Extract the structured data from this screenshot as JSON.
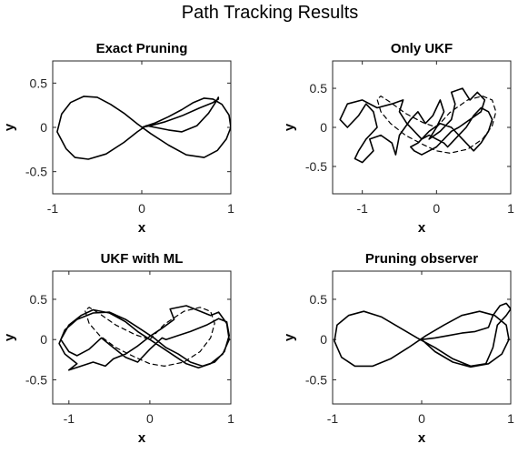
{
  "figure": {
    "title": "Path Tracking Results"
  },
  "chart_data": [
    {
      "type": "line",
      "title": "Exact Pruning",
      "xlabel": "x",
      "ylabel": "y",
      "xlim": [
        -1,
        1
      ],
      "ylim": [
        -0.75,
        0.75
      ],
      "xticks": [
        {
          "v": -1,
          "label": "-1"
        },
        {
          "v": 0,
          "label": "0"
        },
        {
          "v": 1,
          "label": "1"
        }
      ],
      "yticks": [
        {
          "v": 0.5,
          "label": "0.5"
        },
        {
          "v": 0,
          "label": "0"
        },
        {
          "v": -0.5,
          "label": "-0.5"
        }
      ],
      "grid": false,
      "series": [
        {
          "style": "solid",
          "x": [
            0.0,
            0.1,
            0.25,
            0.45,
            0.65,
            0.8,
            0.86,
            0.86,
            0.84,
            0.75,
            0.62,
            0.45,
            0.3,
            0.15,
            0.05,
            -0.05,
            -0.2,
            -0.4,
            -0.6,
            -0.75,
            -0.85,
            -0.95,
            -0.9,
            -0.8,
            -0.65,
            -0.5,
            -0.35,
            -0.2,
            -0.05,
            0.1,
            0.3,
            0.5,
            0.7,
            0.85,
            0.95,
            1.0,
            0.98,
            0.9,
            0.8,
            0.7,
            0.58,
            0.45,
            0.3,
            0.15,
            0.0
          ],
          "y": [
            0.0,
            0.02,
            0.06,
            0.13,
            0.22,
            0.28,
            0.32,
            0.34,
            0.3,
            0.16,
            0.02,
            -0.05,
            -0.03,
            0.0,
            0.02,
            -0.05,
            -0.17,
            -0.3,
            -0.36,
            -0.34,
            -0.24,
            -0.05,
            0.15,
            0.28,
            0.35,
            0.34,
            0.26,
            0.16,
            0.04,
            -0.07,
            -0.2,
            -0.31,
            -0.34,
            -0.26,
            -0.13,
            0.0,
            0.14,
            0.26,
            0.32,
            0.33,
            0.28,
            0.2,
            0.12,
            0.05,
            0.0
          ]
        }
      ]
    },
    {
      "type": "line",
      "title": "Only UKF",
      "xlabel": "x",
      "ylabel": "y",
      "xlim": [
        -1.4,
        1
      ],
      "ylim": [
        -0.85,
        0.85
      ],
      "xticks": [
        {
          "v": -1,
          "label": "-1"
        },
        {
          "v": 0,
          "label": "0"
        },
        {
          "v": 1,
          "label": "1"
        }
      ],
      "yticks": [
        {
          "v": 0.5,
          "label": "0.5"
        },
        {
          "v": 0,
          "label": "0"
        },
        {
          "v": -0.5,
          "label": "-0.5"
        }
      ],
      "grid": false,
      "series": [
        {
          "style": "solid",
          "x": [
            -0.2,
            -0.25,
            -0.4,
            -0.5,
            -0.45,
            -0.6,
            -0.8,
            -1.0,
            -1.2,
            -1.3,
            -1.2,
            -1.05,
            -0.95,
            -0.85,
            -0.8,
            -0.95,
            -1.05,
            -1.1,
            -1.0,
            -0.85,
            -0.9,
            -0.75,
            -0.6,
            -0.55,
            -0.5,
            -0.35,
            -0.25,
            -0.15,
            -0.05,
            0.05,
            0.1,
            0.0,
            -0.1,
            0.05,
            0.2,
            0.25,
            0.2,
            0.35,
            0.45,
            0.55,
            0.65,
            0.6,
            0.45,
            0.3,
            0.2,
            0.1,
            0.0,
            -0.1,
            -0.2,
            -0.3,
            -0.35,
            -0.25,
            -0.1,
            0.05,
            0.2,
            0.35,
            0.5,
            0.6,
            0.7,
            0.75,
            0.7,
            0.6,
            0.5,
            0.4,
            0.3,
            0.2,
            0.15,
            0.1,
            0.0,
            -0.1,
            -0.2
          ],
          "y": [
            -0.15,
            -0.1,
            0.05,
            0.2,
            0.35,
            0.3,
            0.25,
            0.35,
            0.3,
            0.1,
            0.0,
            0.15,
            0.3,
            0.2,
            0.0,
            -0.15,
            -0.3,
            -0.4,
            -0.45,
            -0.3,
            -0.15,
            -0.1,
            -0.2,
            -0.35,
            -0.1,
            0.1,
            0.2,
            0.05,
            0.15,
            0.35,
            0.2,
            0.0,
            -0.15,
            -0.05,
            0.1,
            0.3,
            0.45,
            0.5,
            0.35,
            0.45,
            0.35,
            0.2,
            0.1,
            0.0,
            -0.05,
            -0.15,
            -0.25,
            -0.3,
            -0.35,
            -0.3,
            -0.25,
            -0.2,
            -0.05,
            0.05,
            0.0,
            -0.15,
            -0.3,
            -0.2,
            -0.05,
            0.1,
            0.2,
            0.25,
            0.15,
            0.0,
            -0.1,
            -0.2,
            -0.25,
            -0.2,
            -0.15,
            -0.1,
            -0.15
          ]
        },
        {
          "style": "dashed",
          "x": [
            0.0,
            0.18,
            0.42,
            0.62,
            0.75,
            0.8,
            0.75,
            0.62,
            0.42,
            0.18,
            0.0,
            -0.18,
            -0.42,
            -0.62,
            -0.75,
            -0.8,
            -0.75,
            -0.62,
            -0.42,
            -0.18,
            0.0
          ],
          "y": [
            0.0,
            0.19,
            0.35,
            0.4,
            0.35,
            0.2,
            0.02,
            -0.15,
            -0.28,
            -0.33,
            -0.3,
            -0.22,
            -0.1,
            0.05,
            0.2,
            0.36,
            0.4,
            0.32,
            0.18,
            0.06,
            0.0
          ]
        }
      ]
    },
    {
      "type": "line",
      "title": "UKF with ML",
      "xlabel": "x",
      "ylabel": "y",
      "xlim": [
        -1.2,
        1
      ],
      "ylim": [
        -0.8,
        0.85
      ],
      "xticks": [
        {
          "v": -1,
          "label": "-1"
        },
        {
          "v": 0,
          "label": "0"
        },
        {
          "v": 1,
          "label": "1"
        }
      ],
      "yticks": [
        {
          "v": 0.5,
          "label": "0.5"
        },
        {
          "v": 0,
          "label": "0"
        },
        {
          "v": -0.5,
          "label": "-0.5"
        }
      ],
      "grid": false,
      "series": [
        {
          "style": "solid",
          "x": [
            0.2,
            0.35,
            0.5,
            0.7,
            0.85,
            0.95,
            0.98,
            0.92,
            0.8,
            0.65,
            0.5,
            0.35,
            0.2,
            0.05,
            -0.1,
            -0.3,
            -0.5,
            -0.7,
            -0.9,
            -1.05,
            -1.12,
            -1.05,
            -0.9,
            -1.0,
            -0.85,
            -0.7,
            -0.55,
            -0.45,
            -0.3,
            -0.15,
            0.0,
            0.15,
            0.3,
            0.25,
            0.45,
            0.6,
            0.75,
            0.85,
            0.95,
            0.98,
            0.9,
            0.75,
            0.6,
            0.45,
            0.3,
            0.15,
            0.0,
            -0.15,
            -0.3,
            -0.5,
            -0.7,
            -0.85,
            -1.0,
            -1.1,
            -1.0,
            -0.9,
            -0.75,
            -0.6,
            -0.45,
            -0.3,
            -0.15,
            0.0,
            0.15,
            0.2
          ],
          "y": [
            0.0,
            0.05,
            0.1,
            0.18,
            0.26,
            0.22,
            0.05,
            -0.15,
            -0.28,
            -0.33,
            -0.28,
            -0.18,
            -0.1,
            0.02,
            0.12,
            0.25,
            0.34,
            0.33,
            0.25,
            0.12,
            -0.05,
            -0.18,
            -0.3,
            -0.38,
            -0.33,
            -0.28,
            -0.33,
            -0.24,
            -0.18,
            -0.08,
            0.04,
            0.14,
            0.25,
            0.38,
            0.42,
            0.36,
            0.3,
            0.34,
            0.2,
            0.0,
            -0.18,
            -0.3,
            -0.35,
            -0.3,
            -0.2,
            -0.1,
            0.0,
            0.1,
            0.22,
            0.33,
            0.37,
            0.3,
            0.18,
            0.0,
            -0.15,
            -0.2,
            -0.12,
            0.02,
            -0.1,
            -0.22,
            -0.28,
            -0.12,
            0.02,
            0.0
          ]
        },
        {
          "style": "dashed",
          "x": [
            0.0,
            0.18,
            0.42,
            0.62,
            0.75,
            0.8,
            0.75,
            0.62,
            0.42,
            0.18,
            0.0,
            -0.18,
            -0.42,
            -0.62,
            -0.75,
            -0.8,
            -0.75,
            -0.62,
            -0.42,
            -0.18,
            0.0
          ],
          "y": [
            0.0,
            0.19,
            0.35,
            0.4,
            0.35,
            0.2,
            0.02,
            -0.15,
            -0.28,
            -0.33,
            -0.3,
            -0.22,
            -0.1,
            0.05,
            0.2,
            0.36,
            0.4,
            0.32,
            0.18,
            0.06,
            0.0
          ]
        }
      ]
    },
    {
      "type": "line",
      "title": "Pruning observer",
      "xlabel": "x",
      "ylabel": "y",
      "xlim": [
        -1,
        1
      ],
      "ylim": [
        -0.8,
        0.85
      ],
      "xticks": [
        {
          "v": -1,
          "label": "-1"
        },
        {
          "v": 0,
          "label": "0"
        },
        {
          "v": 1,
          "label": "1"
        }
      ],
      "yticks": [
        {
          "v": 0.5,
          "label": "0.5"
        },
        {
          "v": 0,
          "label": "0"
        },
        {
          "v": -0.5,
          "label": "-0.5"
        }
      ],
      "grid": false,
      "series": [
        {
          "style": "solid",
          "x": [
            0.0,
            0.15,
            0.35,
            0.55,
            0.75,
            0.9,
            0.98,
            0.95,
            0.82,
            0.65,
            0.45,
            0.25,
            0.05,
            -0.15,
            -0.35,
            -0.55,
            -0.75,
            -0.9,
            -0.98,
            -0.95,
            -0.82,
            -0.65,
            -0.45,
            -0.25,
            -0.05,
            0.15,
            0.35,
            0.55,
            0.72,
            0.8,
            0.85,
            0.95,
            1.0,
            0.95,
            0.88,
            0.8,
            0.75,
            0.6,
            0.45,
            0.3,
            0.15,
            0.0
          ],
          "y": [
            0.0,
            -0.15,
            -0.28,
            -0.34,
            -0.3,
            -0.18,
            0.0,
            0.18,
            0.3,
            0.35,
            0.3,
            0.18,
            0.05,
            -0.1,
            -0.24,
            -0.33,
            -0.33,
            -0.22,
            -0.02,
            0.18,
            0.3,
            0.35,
            0.28,
            0.15,
            0.02,
            -0.1,
            -0.24,
            -0.33,
            -0.3,
            -0.1,
            0.18,
            0.3,
            0.38,
            0.45,
            0.42,
            0.3,
            0.15,
            0.1,
            0.08,
            0.05,
            0.02,
            0.0
          ]
        }
      ]
    }
  ]
}
